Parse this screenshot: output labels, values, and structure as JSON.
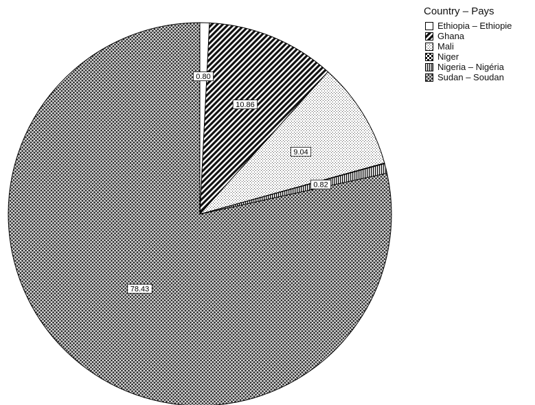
{
  "chart_data": {
    "type": "pie",
    "legend_title": "Country – Pays",
    "legend_position": "top-right",
    "categories": [
      "Ethiopia – Ethiopie",
      "Ghana",
      "Mali",
      "Niger",
      "Nigeria – Nigéria",
      "Sudan – Soudan"
    ],
    "values": [
      0.8,
      10.86,
      9.04,
      0.05,
      0.82,
      78.43
    ],
    "value_labels": [
      "0.80",
      "10.86",
      "9.04",
      "",
      "0.82",
      "78.43"
    ],
    "patterns": [
      "blank",
      "diagonal-stripes",
      "dots",
      "checker",
      "vertical-stripes",
      "crosshatch"
    ],
    "start_angle": "12 o'clock",
    "direction": "clockwise"
  }
}
